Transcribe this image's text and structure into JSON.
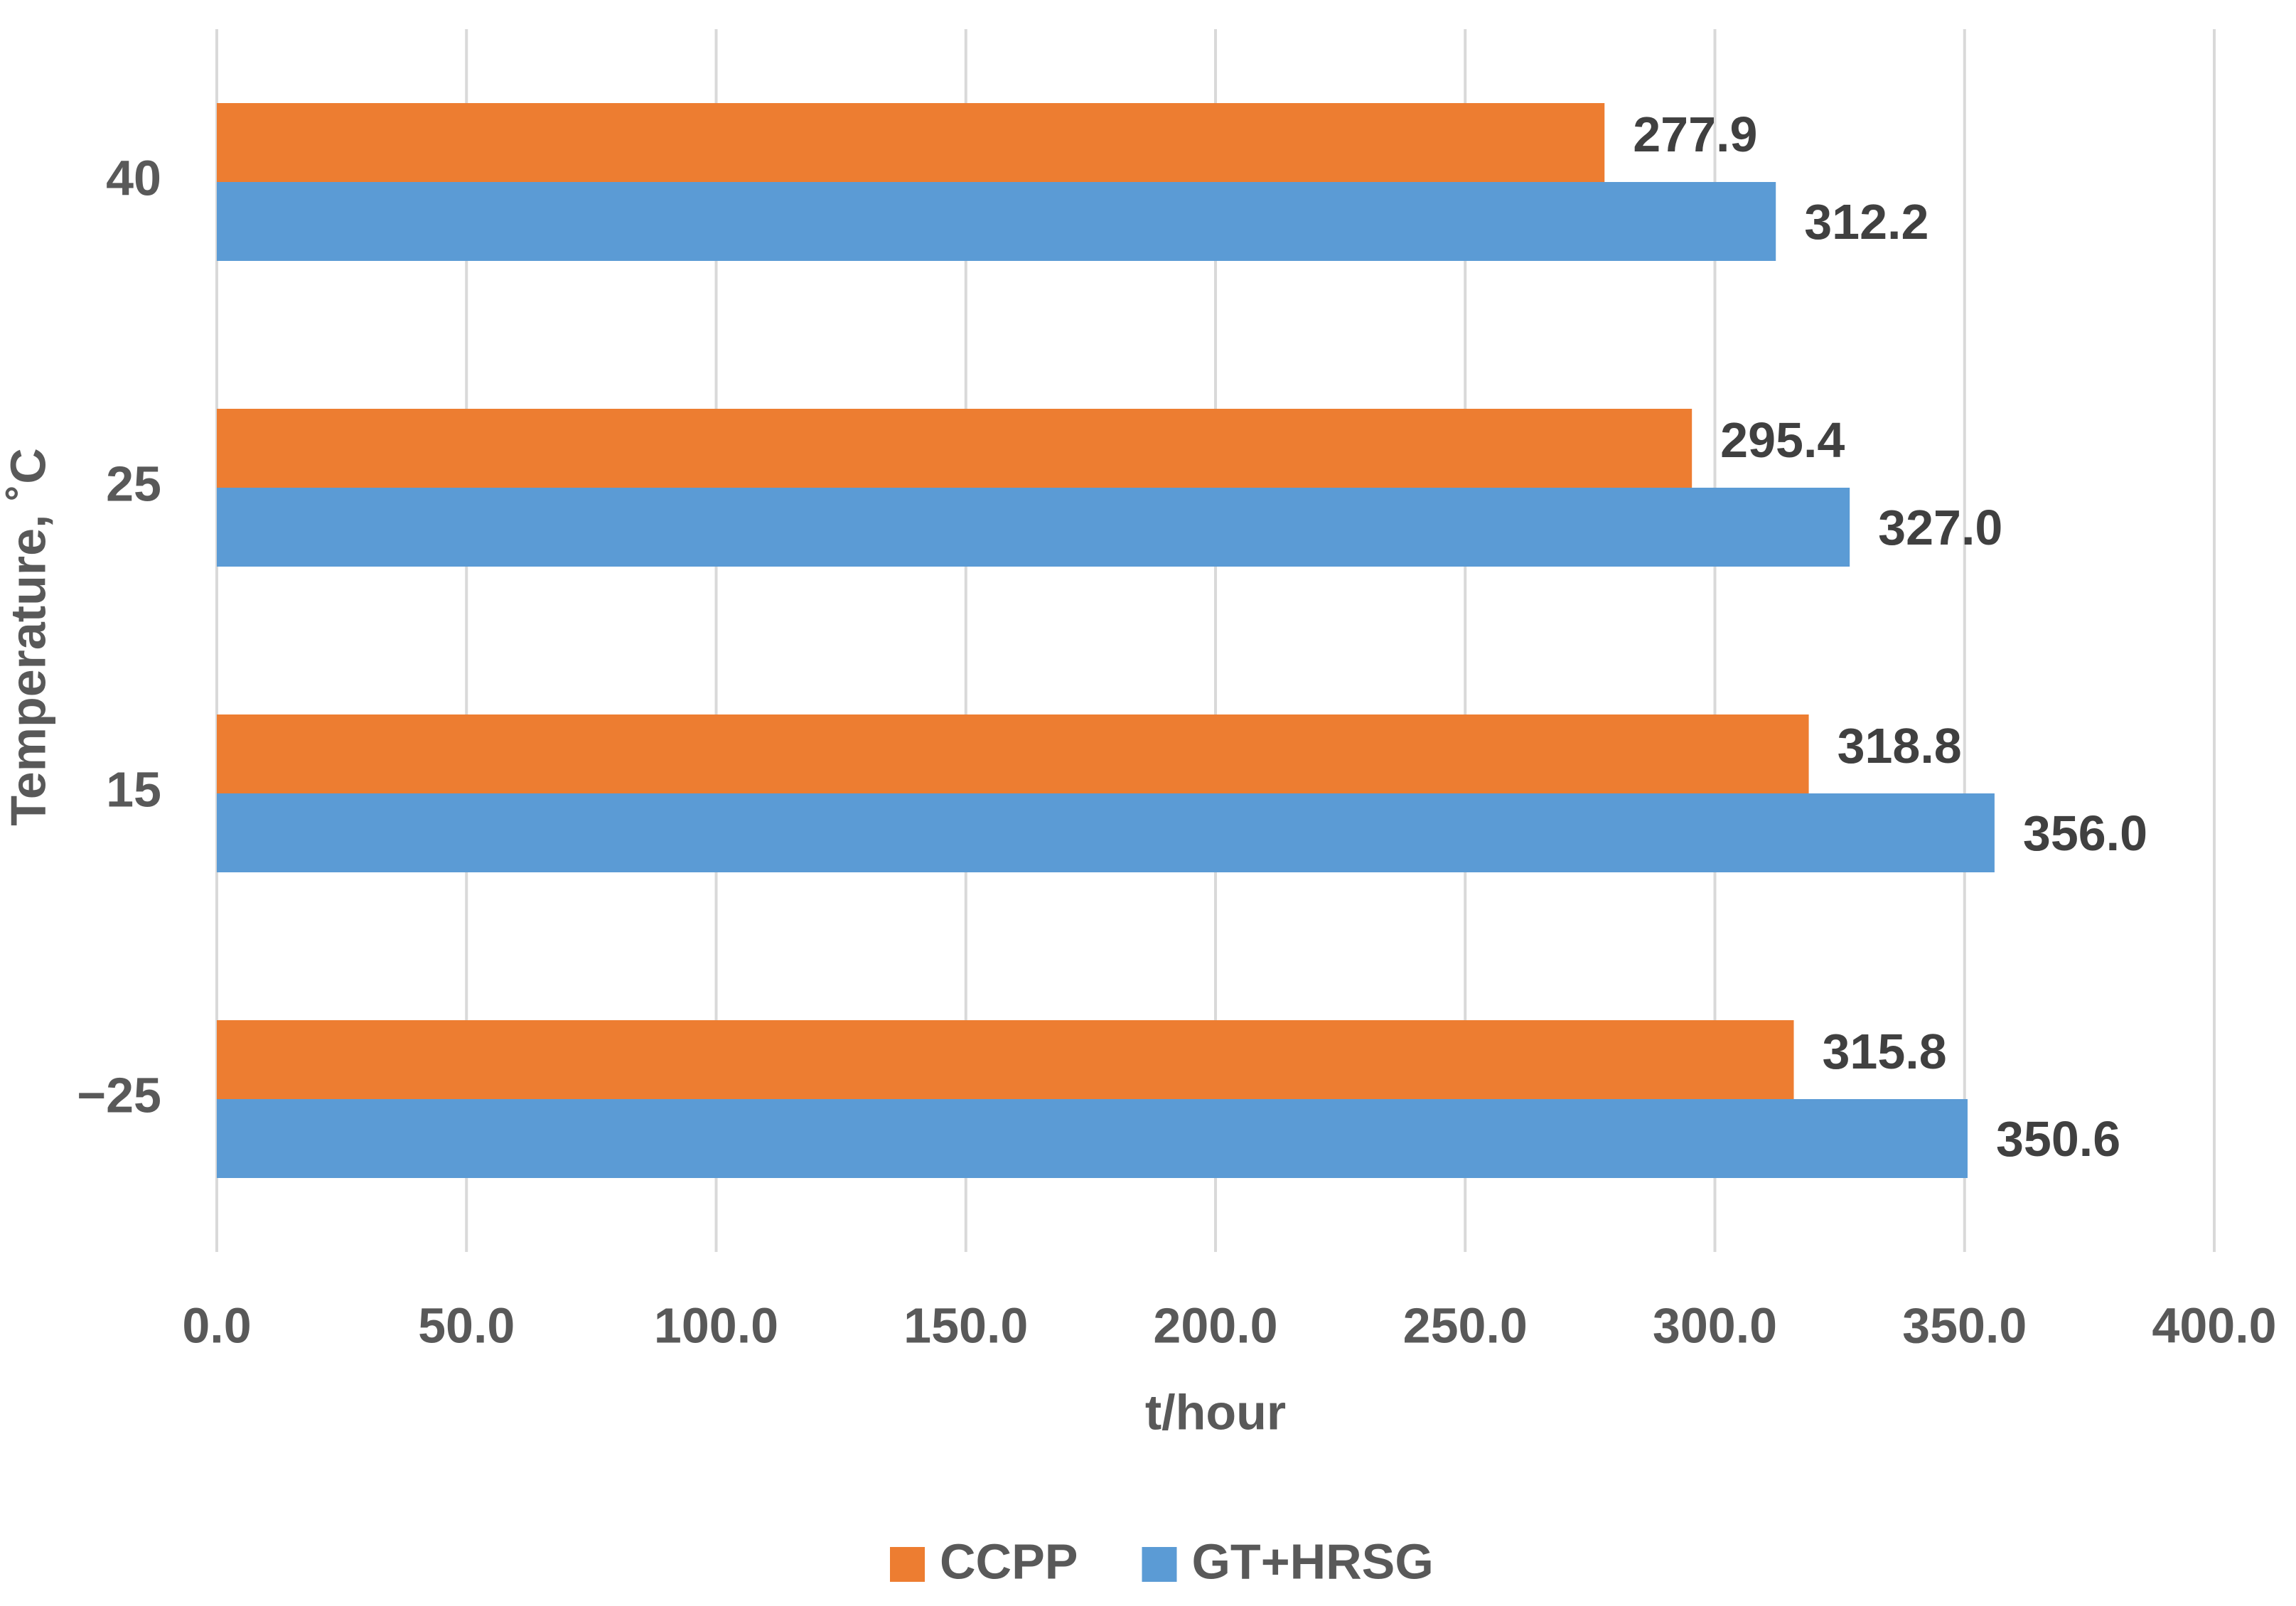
{
  "chart_data": {
    "type": "barh",
    "x_label": "t/hour",
    "y_label": "Temperature, ˚C",
    "categories": [
      "40",
      "25",
      "15",
      "−25"
    ],
    "series": [
      {
        "name": "CCPP",
        "color": "#ed7d31",
        "values": [
          277.9,
          295.4,
          318.8,
          315.8
        ]
      },
      {
        "name": "GT+HRSG",
        "color": "#5b9bd5",
        "values": [
          312.2,
          327.0,
          356.0,
          350.6
        ],
        "value_labels": [
          "312.2",
          "327.0",
          "356.0",
          "350.6"
        ]
      }
    ],
    "xlim": [
      0,
      400
    ],
    "xticks": [
      {
        "value": 0,
        "label": "0.0"
      },
      {
        "value": 50,
        "label": "50.0"
      },
      {
        "value": 100,
        "label": "100.0"
      },
      {
        "value": 150,
        "label": "150.0"
      },
      {
        "value": 200,
        "label": "200.0"
      },
      {
        "value": 250,
        "label": "250.0"
      },
      {
        "value": 300,
        "label": "300.0"
      },
      {
        "value": 350,
        "label": "350.0"
      },
      {
        "value": 400,
        "label": "400.0"
      }
    ],
    "grid": true,
    "legend": "bottom"
  }
}
